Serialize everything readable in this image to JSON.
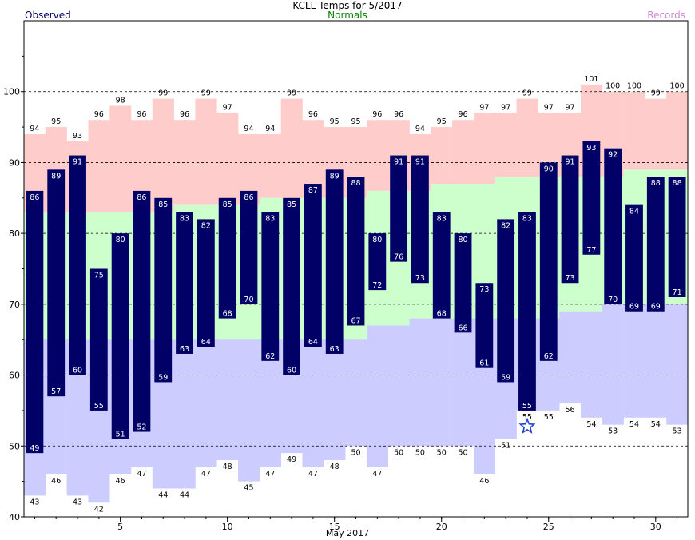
{
  "chart_data": {
    "type": "bar",
    "title": "KCLL Temps for  5/2017",
    "legend": {
      "observed": "Observed",
      "normals": "Normals",
      "records": "Records",
      "placement": "top"
    },
    "xlabel": "May 2017",
    "ylim": [
      40,
      110
    ],
    "yticks": [
      40,
      50,
      60,
      70,
      80,
      90,
      100
    ],
    "xticks": [
      5,
      10,
      15,
      20,
      25,
      30
    ],
    "dashed_gridlines": [
      50,
      60,
      70,
      80,
      90,
      100
    ],
    "days": [
      1,
      2,
      3,
      4,
      5,
      6,
      7,
      8,
      9,
      10,
      11,
      12,
      13,
      14,
      15,
      16,
      17,
      18,
      19,
      20,
      21,
      22,
      23,
      24,
      25,
      26,
      27,
      28,
      29,
      30,
      31
    ],
    "record_high": [
      94,
      95,
      93,
      96,
      98,
      96,
      99,
      96,
      99,
      97,
      94,
      94,
      99,
      96,
      95,
      95,
      96,
      96,
      94,
      95,
      96,
      97,
      97,
      99,
      97,
      97,
      101,
      100,
      100,
      99,
      100
    ],
    "record_low": [
      43,
      46,
      43,
      42,
      46,
      47,
      44,
      44,
      47,
      48,
      45,
      47,
      49,
      47,
      48,
      50,
      47,
      50,
      50,
      50,
      50,
      46,
      51,
      55,
      55,
      56,
      54,
      53,
      54,
      54,
      53
    ],
    "normal_high": [
      null,
      null,
      null,
      83,
      83,
      null,
      null,
      84,
      84,
      null,
      null,
      85,
      null,
      null,
      null,
      null,
      86,
      86,
      86,
      87,
      87,
      87,
      88,
      88,
      null,
      null,
      null,
      null,
      89,
      null,
      null
    ],
    "normal_low": [
      null,
      null,
      null,
      null,
      null,
      null,
      null,
      null,
      null,
      65,
      65,
      null,
      null,
      null,
      null,
      null,
      67,
      67,
      68,
      null,
      null,
      null,
      null,
      null,
      null,
      69,
      69,
      70,
      70,
      70,
      70
    ],
    "observed_high": [
      86,
      89,
      91,
      75,
      80,
      86,
      85,
      83,
      82,
      85,
      86,
      83,
      85,
      87,
      89,
      88,
      80,
      91,
      91,
      83,
      80,
      73,
      82,
      83,
      90,
      91,
      93,
      92,
      84,
      88,
      88
    ],
    "observed_low": [
      49,
      57,
      60,
      55,
      51,
      52,
      59,
      63,
      64,
      68,
      70,
      62,
      60,
      64,
      63,
      67,
      72,
      76,
      73,
      68,
      66,
      61,
      59,
      55,
      62,
      73,
      77,
      70,
      69,
      69,
      71
    ],
    "record_low_marker_day": 24,
    "colors": {
      "record": "#ffcccc",
      "record_low": "#ccccff",
      "normal": "#ccffcc",
      "observed": "#000066",
      "observed_label": "#000066",
      "normals_label": "#008000",
      "records_label": "#cc88cc",
      "marker": "#2244cc"
    }
  }
}
